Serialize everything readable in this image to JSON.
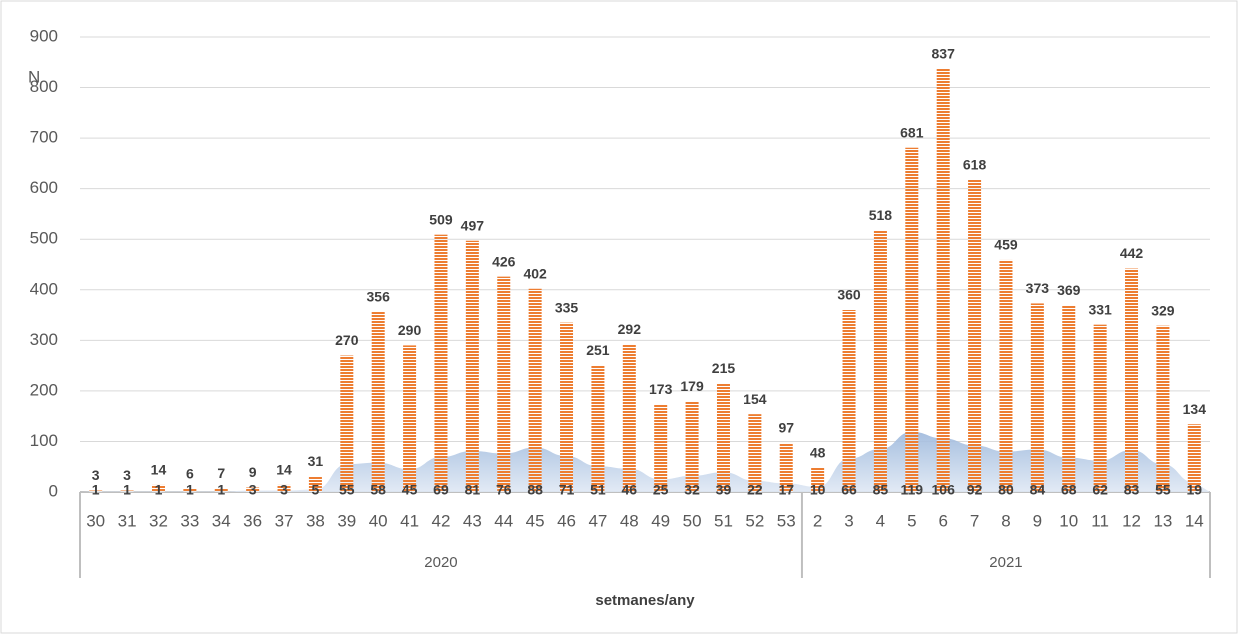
{
  "chart_data": {
    "type": "bar-area",
    "y_axis_label": "N",
    "x_axis_label": "setmanes/any",
    "category_groups": [
      {
        "label": "2020",
        "categories": [
          "30",
          "31",
          "32",
          "33",
          "34",
          "36",
          "37",
          "38",
          "39",
          "40",
          "41",
          "42",
          "43",
          "44",
          "45",
          "46",
          "47",
          "48",
          "49",
          "50",
          "51",
          "52",
          "53"
        ]
      },
      {
        "label": "2021",
        "categories": [
          "2",
          "3",
          "4",
          "5",
          "6",
          "7",
          "8",
          "9",
          "10",
          "11",
          "12",
          "13",
          "14"
        ]
      }
    ],
    "series": [
      {
        "type": "bar",
        "color": "#ed7d31",
        "values": [
          3,
          3,
          14,
          6,
          7,
          9,
          14,
          31,
          270,
          356,
          290,
          509,
          497,
          426,
          402,
          335,
          251,
          292,
          173,
          179,
          215,
          154,
          97,
          48,
          360,
          518,
          681,
          837,
          618,
          459,
          373,
          369,
          331,
          442,
          329,
          134
        ]
      },
      {
        "type": "area",
        "color": "#9db8dc",
        "values": [
          1,
          1,
          1,
          1,
          1,
          3,
          3,
          5,
          55,
          58,
          45,
          69,
          81,
          76,
          88,
          71,
          51,
          46,
          25,
          32,
          39,
          22,
          17,
          10,
          66,
          85,
          119,
          106,
          92,
          80,
          84,
          68,
          62,
          83,
          55,
          19
        ]
      }
    ],
    "ylim": [
      0,
      900
    ],
    "yticks": [
      0,
      100,
      200,
      300,
      400,
      500,
      600,
      700,
      800,
      900
    ],
    "grid": true
  }
}
